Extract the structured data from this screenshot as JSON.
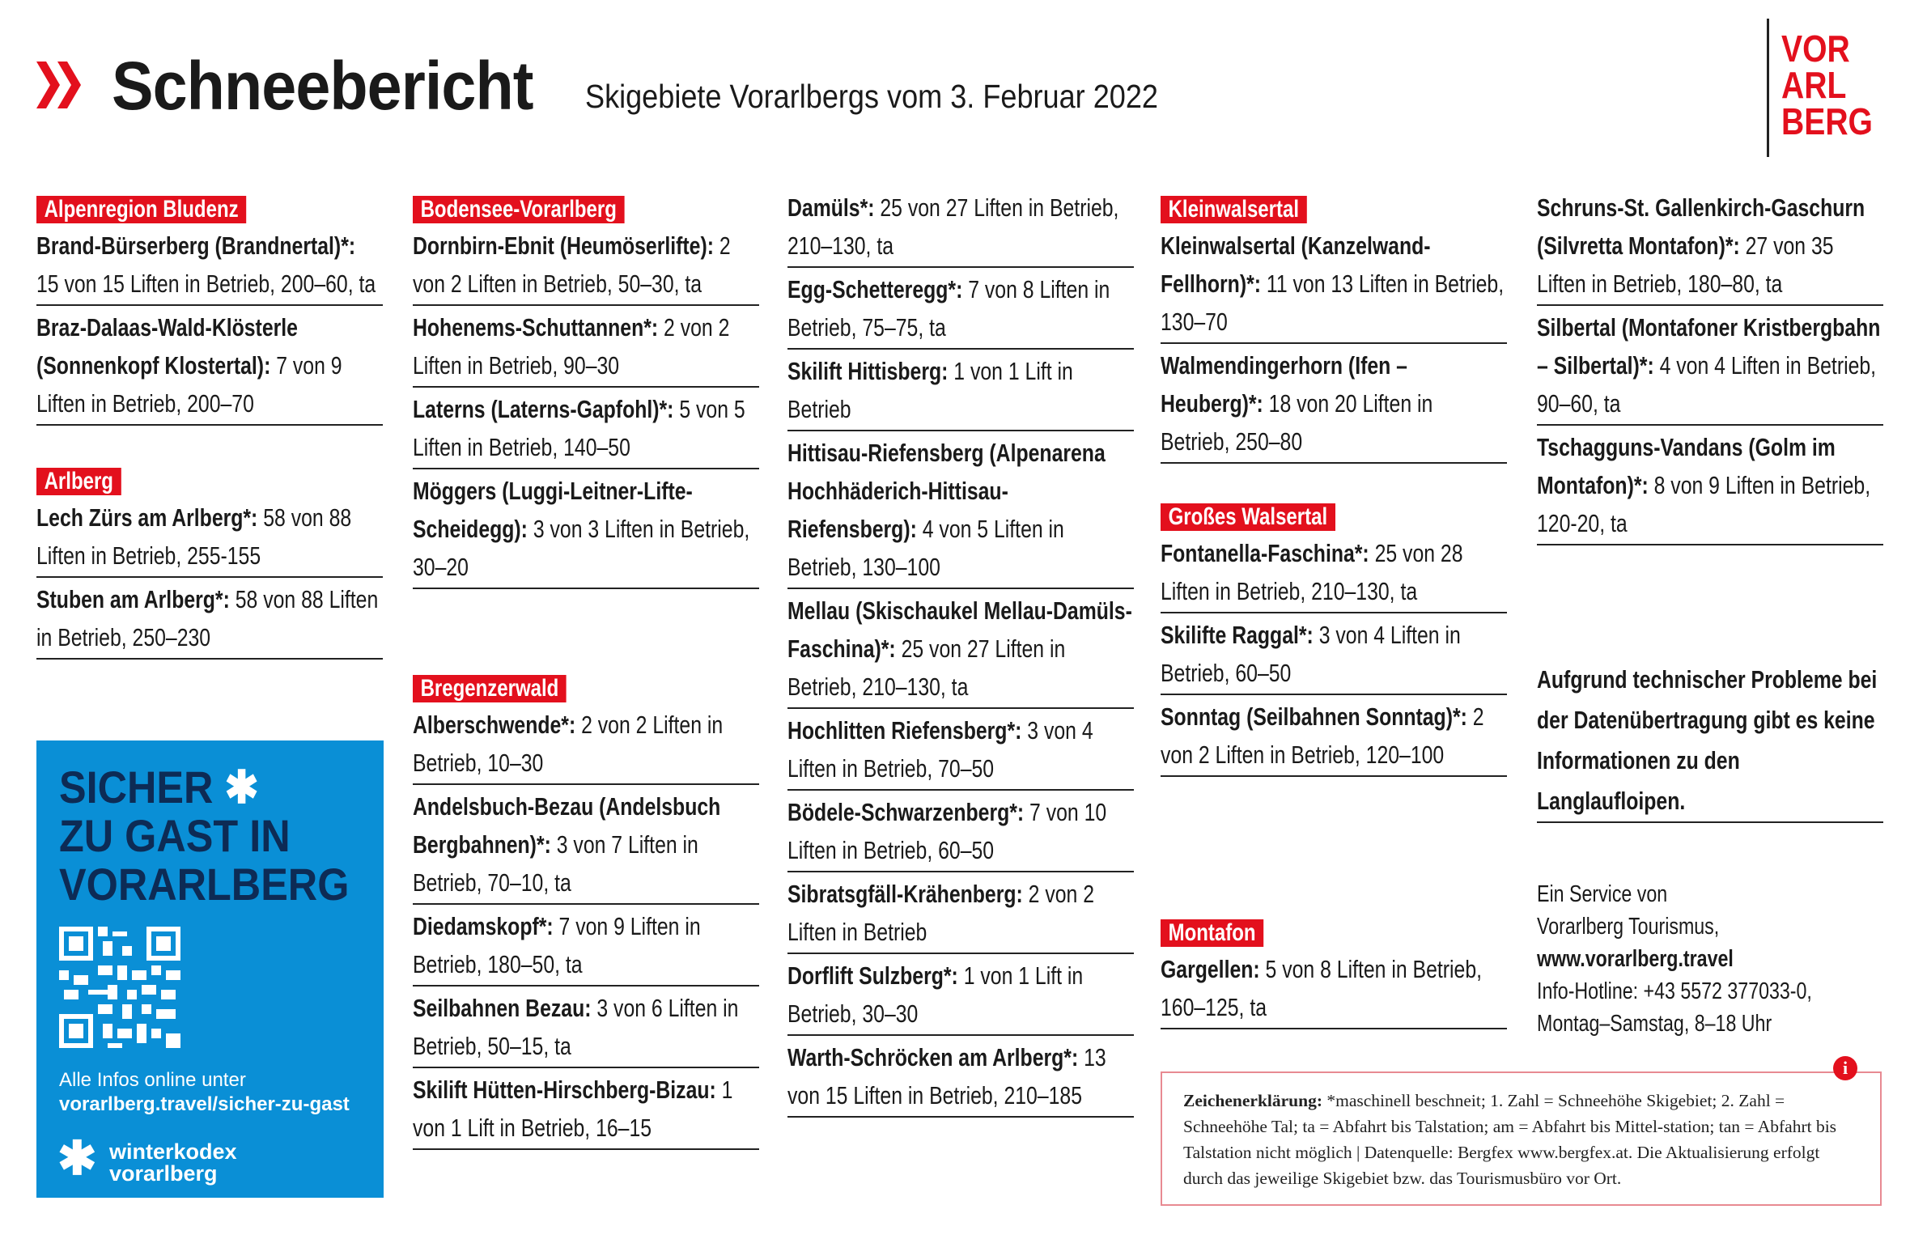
{
  "header": {
    "title": "Schneebericht",
    "subtitle": "Skigebiete Vorarlbergs vom 3. Februar 2022",
    "logo": [
      "VOR",
      "ARL",
      "BERG"
    ]
  },
  "sections": {
    "bludenz": {
      "title": "Alpenregion Bludenz",
      "entries": [
        {
          "name": "Brand-Bürserberg (Brandner­tal)*:",
          "text": " 15 von 15 Liften in Betrieb, 200–60, ta"
        },
        {
          "name": "Braz-Dalaas-Wald-Klösterle (Sonnenkopf Klostertal):",
          "text": " 7 von 9 Liften in Betrieb, 200–70"
        }
      ]
    },
    "arlberg": {
      "title": "Arlberg",
      "entries": [
        {
          "name": "Lech Zürs am Arlberg*:",
          "text": " 58  von 88 Liften in Betrieb, 255-155"
        },
        {
          "name": "Stuben am Arlberg*:",
          "text": " 58 von 88 Liften in Betrieb, 250–230"
        }
      ]
    },
    "bodensee": {
      "title": "Bodensee-Vorarlberg",
      "entries": [
        {
          "name": "Dornbirn-Ebnit (Heumöser­lifte):",
          "text": " 2 von 2 Liften in Betrieb, 50–30, ta"
        },
        {
          "name": "Hohenems-Schuttannen*:",
          "text": " 2 von 2 Liften in Betrieb, 90–30"
        },
        {
          "name": "Laterns (Laterns-Gapfohl)*:",
          "text": " 5 von 5 Liften in Betrieb, 140–50"
        },
        {
          "name": "Möggers (Luggi-Leitner-Lifte-Scheidegg):",
          "text": " 3 von 3 Liften in Betrieb, 30–20"
        }
      ]
    },
    "bregenzerwald": {
      "title": "Bregenzerwald",
      "entries": [
        {
          "name": "Alberschwende*:",
          "text": " 2 von 2 Liften in Betrieb, 10–30"
        },
        {
          "name": "Andelsbuch-Bezau (Andelsbuch Bergbahnen)*:",
          "text": " 3 von 7 Liften in Betrieb, 70–10, ta"
        },
        {
          "name": "Diedamskopf*:",
          "text": " 7 von 9 Liften in Betrieb, 180–50, ta"
        },
        {
          "name": "Seilbahnen Bezau:",
          "text": " 3 von 6 Liften in Betrieb, 50–15, ta"
        },
        {
          "name": "Skilift Hütten-Hirschberg-Bizau:",
          "text": " 1 von 1 Lift in Betrieb, 16–15"
        }
      ]
    },
    "bregenzerwald2": {
      "entries": [
        {
          "name": "Damüls*:",
          "text": " 25 von 27 Liften in Betrieb, 210–130, ta"
        },
        {
          "name": "Egg-Schetteregg*:",
          "text": " 7 von 8 Liften in Betrieb, 75–75, ta"
        },
        {
          "name": "Skilift Hittisberg:",
          "text": " 1 von 1 Lift in Betrieb"
        },
        {
          "name": "Hittisau-Riefensberg (Alpen­arena Hochhäderich-Hitti­sau-Riefensberg):",
          "text": " 4 von 5 Liften in Betrieb, 130–100"
        },
        {
          "name": "Mellau (Skischaukel Mellau-Damüls-Faschina)*:",
          "text": " 25 von 27 Liften in Betrieb, 210–130, ta"
        },
        {
          "name": "Hochlitten Riefensberg*:",
          "text": " 3 von 4 Liften in Betrieb, 70–50"
        },
        {
          "name": "Bödele-Schwarzenberg*:",
          "text": " 7 von 10 Liften in Betrieb, 60–50"
        },
        {
          "name": "Sibratsgfäll-Krähenberg:",
          "text": " 2 von 2 Liften in Betrieb"
        },
        {
          "name": "Dorflift Sulzberg*:",
          "text": " 1 von 1 Lift in Betrieb, 30–30"
        },
        {
          "name": "Warth-Schröcken am Arlberg*:",
          "text": " 13 von 15 Liften in Betrieb, 210–185"
        }
      ]
    },
    "kleinwalsertal": {
      "title": "Kleinwalsertal",
      "entries": [
        {
          "name": "Kleinwalsertal (Kanzelwand-Fellhorn)*:",
          "text": " 11 von 13 Liften in Betrieb, 130–70"
        },
        {
          "name": "Walmendingerhorn (Ifen – Heuberg)*:",
          "text": " 18 von 20 Liften in Betrieb, 250–80"
        }
      ]
    },
    "walsertal": {
      "title": "Großes Walsertal",
      "entries": [
        {
          "name": "Fontanella-Faschina*:",
          "text": " 25 von 28 Liften in Betrieb, 210–130, ta"
        },
        {
          "name": "Skilifte Raggal*:",
          "text": " 3 von 4 Liften in Betrieb, 60–50"
        },
        {
          "name": "Sonntag (Seilbahnen Sonn­tag)*:",
          "text": " 2 von 2 Liften in Betrieb, 120–100"
        }
      ]
    },
    "montafon": {
      "title": "Montafon",
      "entries": [
        {
          "name": "Gargellen:",
          "text": " 5 von 8 Liften in Be­trieb, 160–125, ta"
        }
      ]
    },
    "montafon2": {
      "entries": [
        {
          "name": "Schruns-St. Gallenkirch-Gaschurn (Silvretta Montafon)*:",
          "text": " 27 von 35 Liften in Betrieb, 180–80, ta"
        },
        {
          "name": "Silbertal (Montafoner Krist­bergbahn – Silbertal)*:",
          "text": " 4 von 4 Liften in Betrieb, 90–60, ta"
        },
        {
          "name": "Tschagguns-Vandans (Golm im Montafon)*:",
          "text": " 8 von 9 Liften in Betrieb, 120-20, ta"
        }
      ]
    }
  },
  "note": "Aufgrund technischer Probleme bei der Datenübertragung gibt es keine Informationen zu den Langlaufloipen.",
  "service": {
    "line1": "Ein Service von",
    "line2": "Vorarlberg Tourismus,",
    "url": "www.vorarlberg.travel",
    "hotline": "Info-Hotline: +43 5572 377033-0,",
    "hours": "Montag–Samstag, 8–18 Uhr"
  },
  "promo": {
    "title": [
      "SICHER",
      "ZU GAST IN",
      "VORARLBERG"
    ],
    "info": "Alle Infos online unter",
    "url": "vorarlberg.travel/sicher-zu-gast",
    "brand": [
      "winterkodex",
      "vorarlberg"
    ]
  },
  "legend": {
    "label": "Zeichenerklärung:",
    "text": " *maschinell beschneit; 1. Zahl = Schneehöhe Skigebiet;  2. Zahl = Schneehöhe Tal; ta = Abfahrt bis Talstation; am = Abfahrt bis Mittel-station; tan = Abfahrt bis Talstation nicht möglich | Datenquelle: Bergfex www.bergfex.at. Die Ak­tualisierung erfolgt durch das jeweilige Skigebiet bzw. das Tourismusbüro vor Ort.",
    "icon": "info-icon"
  },
  "colors": {
    "red": "#e3101d",
    "blue": "#0a8fd6",
    "navy": "#0d2b55"
  }
}
